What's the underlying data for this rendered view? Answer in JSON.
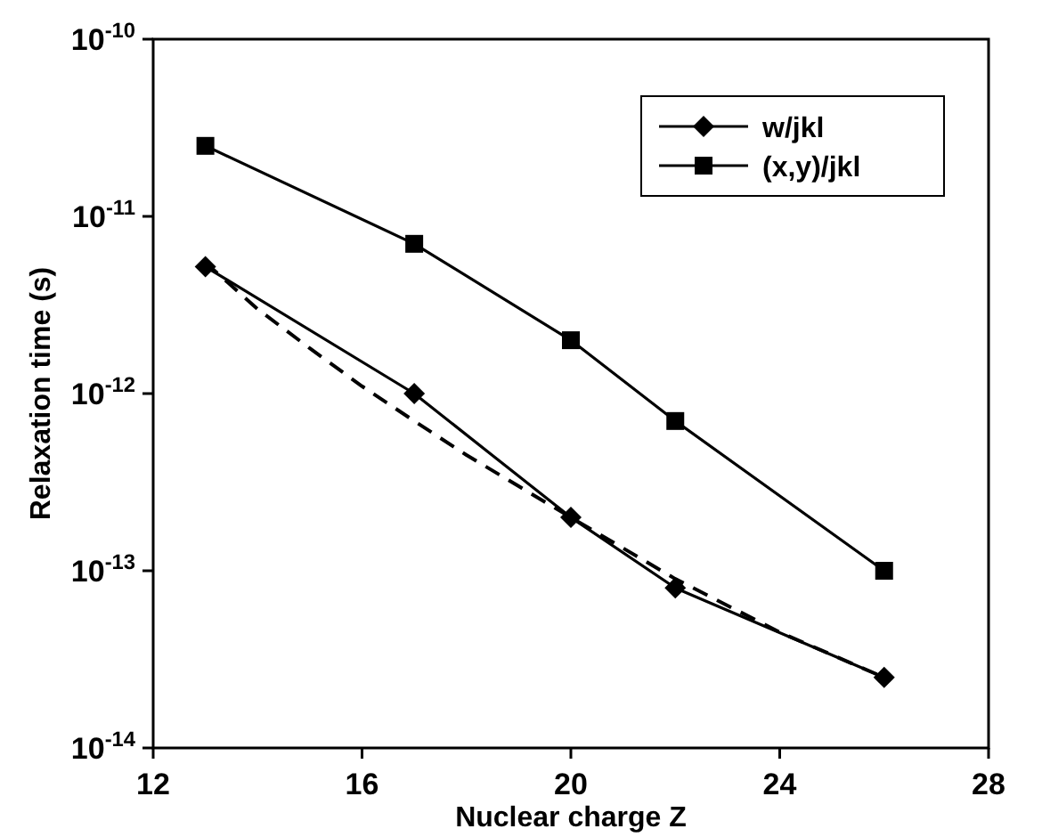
{
  "chart_data": {
    "type": "line",
    "xlabel": "Nuclear charge Z",
    "ylabel": "Relaxation time (s)",
    "log": "y",
    "xlim": [
      12,
      28
    ],
    "xticks": [
      12,
      16,
      20,
      24,
      28
    ],
    "ylim": [
      1e-14,
      1e-10
    ],
    "yticks": [
      {
        "value": 1e-14,
        "label": "10$^{-14}$"
      },
      {
        "value": 1e-13,
        "label": "10$^{-13}$"
      },
      {
        "value": 1e-12,
        "label": "10$^{-12}$"
      },
      {
        "value": 1e-11,
        "label": "10$^{-11}$"
      },
      {
        "value": 1e-10,
        "label": "10$^{-10}$"
      }
    ],
    "grid": false,
    "legend": "top right",
    "x": [
      13,
      17,
      20,
      22,
      26
    ],
    "series": [
      {
        "name": "w/jkl",
        "color": "#000000",
        "marker": "diamond",
        "values": [
          5.2e-12,
          1e-12,
          2e-13,
          8e-14,
          2.5e-14
        ]
      },
      {
        "name": "(x,y)/jkl",
        "color": "#000000",
        "marker": "square",
        "values": [
          2.5e-11,
          7e-12,
          2e-12,
          7e-13,
          1e-13
        ]
      },
      {
        "color": "#000000",
        "marker": "none",
        "line_style": "dashed",
        "x": [
          13,
          14,
          15,
          16,
          17,
          18,
          19,
          20,
          22,
          24,
          26
        ],
        "values": [
          5.5e-12,
          3e-12,
          1.8e-12,
          1.1e-12,
          7e-13,
          4.5e-13,
          3e-13,
          2e-13,
          9e-14,
          4.5e-14,
          2.5e-14
        ]
      }
    ]
  }
}
